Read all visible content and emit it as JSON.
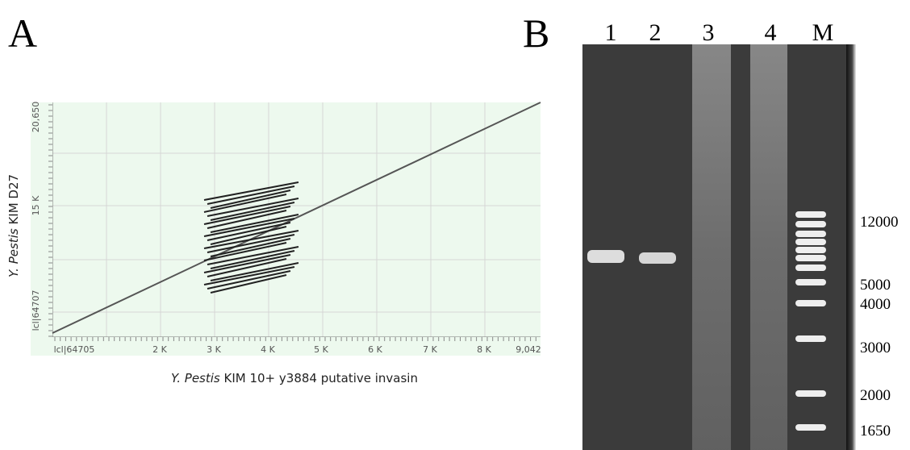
{
  "panels": [
    {
      "label": "A",
      "y_axis_label": {
        "italic": "Y. Pestis",
        "rest": " KIM D27"
      },
      "y_ticks": [
        "lcl|64707",
        "15 K",
        "20,650"
      ],
      "x_ticks": [
        "lcl|64705",
        "2 K",
        "3 K",
        "4 K",
        "5 K",
        "6 K",
        "7 K",
        "8 K",
        "9,042"
      ],
      "x_axis_label": {
        "italic": "Y. Pestis",
        "rest": " KIM 10+ y3884 putative invasin"
      }
    },
    {
      "label": "B",
      "lanes": [
        "1",
        "2",
        "3",
        "4",
        "M"
      ],
      "ladder": [
        "12000",
        "5000",
        "4000",
        "3000",
        "2000",
        "1650"
      ]
    }
  ]
}
